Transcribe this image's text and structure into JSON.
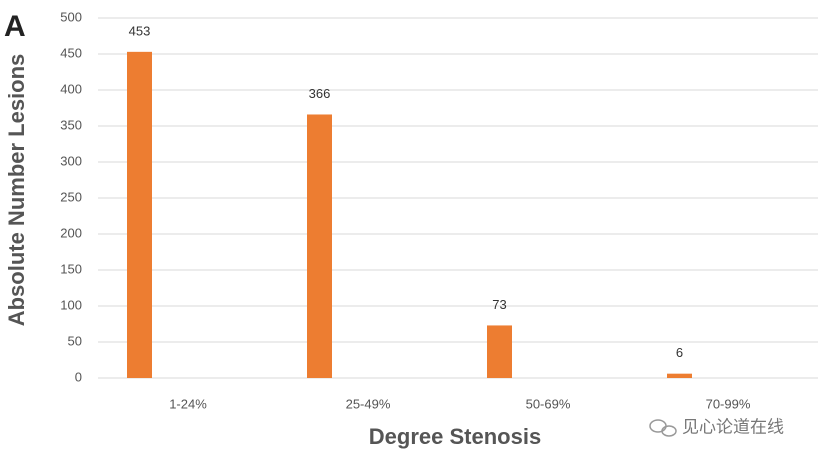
{
  "chart_data": {
    "type": "bar",
    "panel_label": "A",
    "xlabel": "Degree Stenosis",
    "ylabel": "Absolute Number Lesions",
    "categories": [
      "1-24%",
      "25-49%",
      "50-69%",
      "70-99%"
    ],
    "values": [
      453,
      366,
      73,
      6
    ],
    "color": "#ed7d31",
    "ylim": [
      0,
      500
    ],
    "yticks": [
      0,
      50,
      100,
      150,
      200,
      250,
      300,
      350,
      400,
      450,
      500
    ],
    "grid": true,
    "watermark": "见心论道在线"
  }
}
